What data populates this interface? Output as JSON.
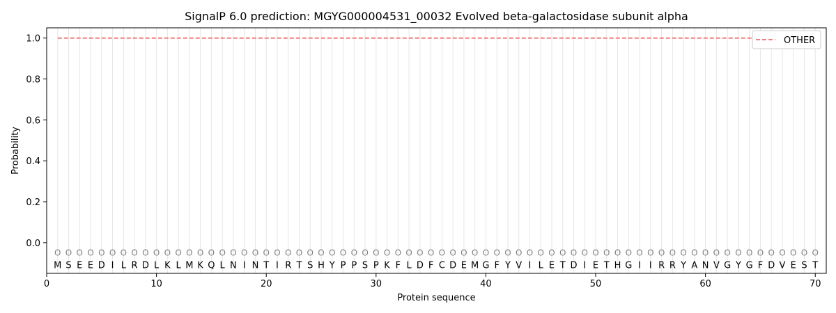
{
  "chart_data": {
    "type": "line",
    "title": "SignalP 6.0 prediction: MGYG000004531_00032 Evolved beta-galactosidase subunit alpha",
    "xlabel": "Protein sequence",
    "ylabel": "Probability",
    "xlim": [
      0,
      71
    ],
    "ylim": [
      -0.15,
      1.05
    ],
    "xticks": [
      0,
      10,
      20,
      30,
      40,
      50,
      60,
      70
    ],
    "yticks": [
      "0.0",
      "0.2",
      "0.4",
      "0.6",
      "0.8",
      "1.0"
    ],
    "sequence": "MSEEDILRDLKLMKQLNINTIRTSHYPPSPKFLDFCDEMGFYVILETDIETHGIIRRYANVGYGFDVEST",
    "residue_label_y": -0.05,
    "residue_marker": "O",
    "series": [
      {
        "name": "OTHER",
        "color": "#f08080",
        "style": "dashed",
        "x_start": 1,
        "x_end": 70,
        "value": 1.0
      }
    ],
    "legend": {
      "placement": "top-right",
      "entries": [
        "OTHER"
      ]
    },
    "grid": "vertical lines at each residue"
  }
}
